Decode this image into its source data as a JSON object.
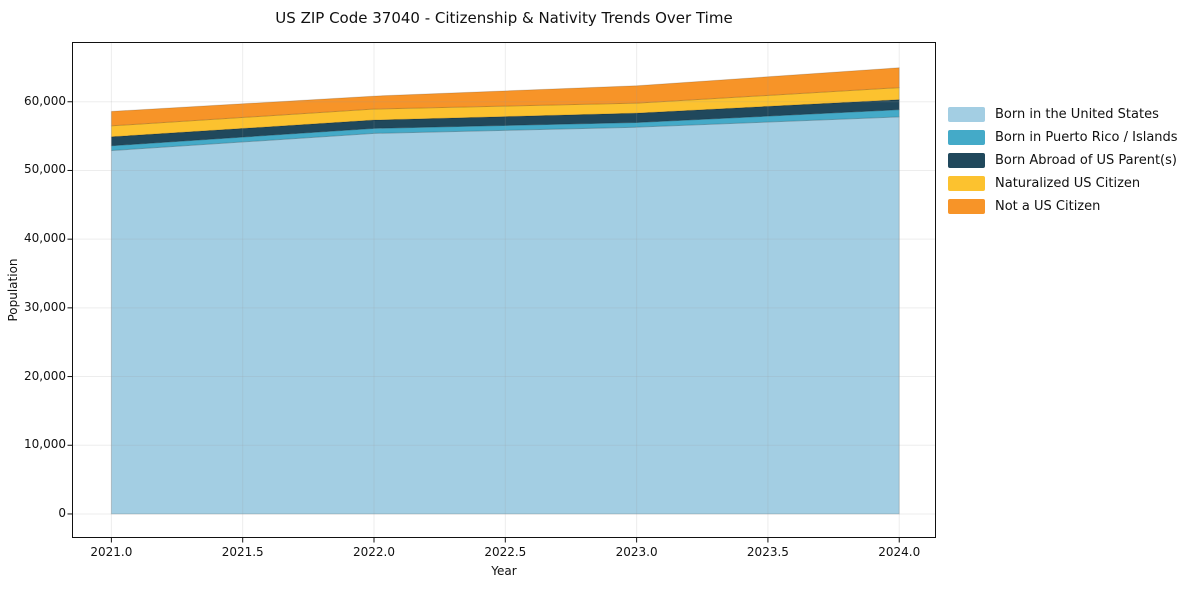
{
  "chart_data": {
    "type": "area",
    "stacked": true,
    "title": "US ZIP Code 37040 - Citizenship & Nativity Trends Over Time",
    "xlabel": "Year",
    "ylabel": "Population",
    "x": [
      2021,
      2022,
      2023,
      2024
    ],
    "series": [
      {
        "name": "Born in the United States",
        "color": "#A3CEE3",
        "values": [
          52900,
          55400,
          56300,
          57800
        ]
      },
      {
        "name": "Born in Puerto Rico / Islands",
        "color": "#44AAC8",
        "values": [
          700,
          730,
          680,
          1050
        ]
      },
      {
        "name": "Born Abroad of US Parent(s)",
        "color": "#20485C",
        "values": [
          1300,
          1210,
          1370,
          1460
        ]
      },
      {
        "name": "Naturalized US Citizen",
        "color": "#FCC22F",
        "values": [
          1600,
          1600,
          1460,
          1750
        ]
      },
      {
        "name": "Not a US Citizen",
        "color": "#F79428",
        "values": [
          2100,
          1890,
          2520,
          2900
        ]
      }
    ],
    "xlim": [
      2020.85,
      2024.14
    ],
    "ylim": [
      -3500,
      68700
    ],
    "xticks": {
      "values": [
        2021.0,
        2021.5,
        2022.0,
        2022.5,
        2023.0,
        2023.5,
        2024.0
      ],
      "labels": [
        "2021.0",
        "2021.5",
        "2022.0",
        "2022.5",
        "2023.0",
        "2023.5",
        "2024.0"
      ]
    },
    "yticks": {
      "values": [
        0,
        10000,
        20000,
        30000,
        40000,
        50000,
        60000
      ],
      "labels": [
        "0",
        "10,000",
        "20,000",
        "30,000",
        "40,000",
        "50,000",
        "60,000"
      ]
    },
    "grid": true,
    "legend_position": "outside-right",
    "frame_color": "#111111",
    "grid_color": "#999999"
  }
}
